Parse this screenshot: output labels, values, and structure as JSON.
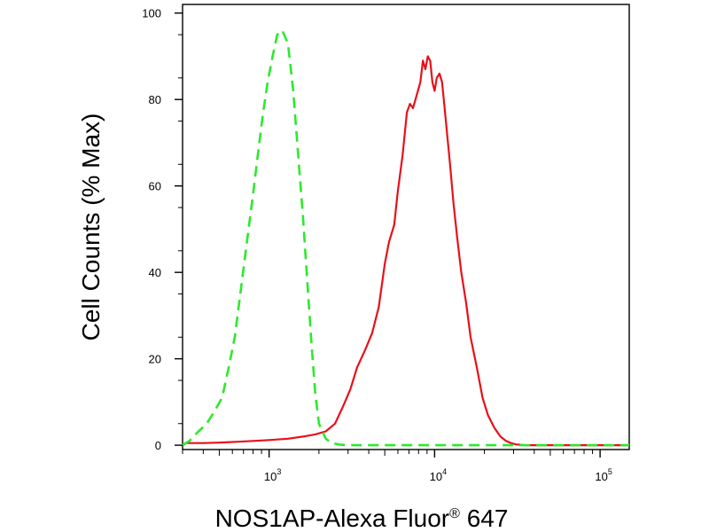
{
  "chart_data": {
    "type": "line",
    "title": "",
    "xlabel": "NOS1AP-Alexa Fluor",
    "xlabel_sup": "®",
    "xlabel_suffix": " 647",
    "ylabel": "Cell Counts (% Max)",
    "x_scale": "log",
    "xlim": [
      300,
      150000
    ],
    "ylim": [
      -1,
      102
    ],
    "grid": false,
    "legend": "none",
    "y_ticks": [
      0,
      20,
      40,
      60,
      80,
      100
    ],
    "x_ticks": [
      {
        "value": 1000,
        "base": "10",
        "exp": "3"
      },
      {
        "value": 10000,
        "base": "10",
        "exp": "4"
      },
      {
        "value": 100000,
        "base": "10",
        "exp": "5"
      }
    ],
    "series": [
      {
        "color": "#e8101a",
        "style": "solid",
        "x": [
          310,
          400,
          500,
          650,
          800,
          1000,
          1300,
          1600,
          1900,
          2200,
          2500,
          2800,
          3100,
          3400,
          3800,
          4200,
          4600,
          5000,
          5300,
          5700,
          6000,
          6400,
          6800,
          7100,
          7400,
          7800,
          8200,
          8500,
          8800,
          9100,
          9400,
          9700,
          10000,
          10300,
          10700,
          11100,
          11500,
          11900,
          12400,
          13000,
          13700,
          14500,
          15500,
          16500,
          18000,
          19500,
          21000,
          23000,
          25000,
          27000,
          29000,
          31000,
          33000,
          35000,
          40000,
          50000,
          70000,
          100000,
          150000
        ],
        "y": [
          0.5,
          0.5,
          0.6,
          0.8,
          1.0,
          1.2,
          1.5,
          2.0,
          2.5,
          3.2,
          5.0,
          9.0,
          13.0,
          18.0,
          22.0,
          26.0,
          32.0,
          42.0,
          47.0,
          51.0,
          59.0,
          67.0,
          77.0,
          79.0,
          78.0,
          81.0,
          84.0,
          89.0,
          87.0,
          90.0,
          89.0,
          84.0,
          82.0,
          85.0,
          86.0,
          84.0,
          78.0,
          72.0,
          65.0,
          56.0,
          48.0,
          40.0,
          33.0,
          25.0,
          18.0,
          11.0,
          7.0,
          4.0,
          2.0,
          1.0,
          0.5,
          0.2,
          0.1,
          0.0,
          0.0,
          0.0,
          0.0,
          0.0,
          0.0
        ]
      },
      {
        "color": "#2ee82e",
        "style": "dashed",
        "x": [
          300,
          330,
          370,
          420,
          470,
          520,
          570,
          620,
          680,
          740,
          800,
          860,
          920,
          980,
          1050,
          1120,
          1200,
          1300,
          1400,
          1500,
          1600,
          1700,
          1800,
          1900,
          2000,
          2200,
          2400,
          2700,
          3000,
          4000,
          10000,
          50000,
          150000
        ],
        "y": [
          0.0,
          1.0,
          3.0,
          5.0,
          8.0,
          11.0,
          18.0,
          25.0,
          37.0,
          48.0,
          58.0,
          68.0,
          77.0,
          84.0,
          90.0,
          95.0,
          96.0,
          93.0,
          82.0,
          67.0,
          53.0,
          38.0,
          24.0,
          12.0,
          5.0,
          1.5,
          0.5,
          0.1,
          0.0,
          0.0,
          0.0,
          0.0,
          0.0
        ]
      }
    ]
  }
}
